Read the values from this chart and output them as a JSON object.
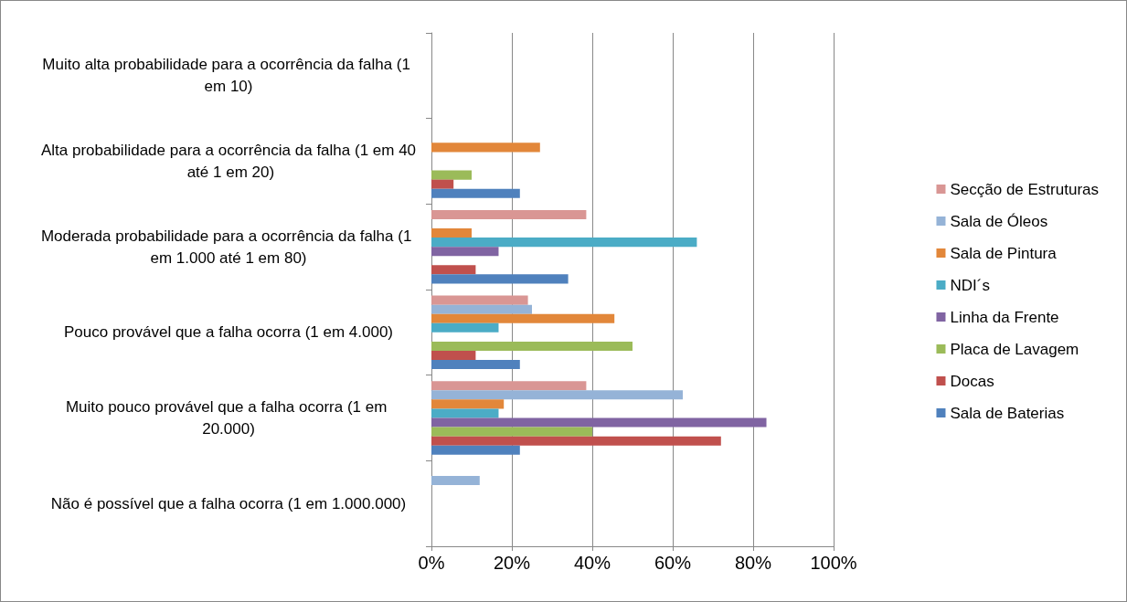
{
  "chart_data": {
    "type": "bar",
    "orientation": "horizontal",
    "categories": [
      "Muito alta probabilidade para a ocorrência da falha (1 em 10)",
      "Alta probabilidade para a ocorrência da falha (1 em 40 até 1 em 20)",
      "Moderada probabilidade para a ocorrência da falha (1 em 1.000 até 1 em 80)",
      "Pouco provável que a falha ocorra (1 em 4.000)",
      "Muito pouco provável que a falha ocorra (1 em 20.000)",
      "Não é possível que a falha ocorra (1 em 1.000.000)"
    ],
    "series": [
      {
        "name": "Secção de Estruturas",
        "color": "#d99694",
        "values": [
          null,
          null,
          38.5,
          24,
          38.5,
          null
        ]
      },
      {
        "name": "Sala de Óleos",
        "color": "#95b3d7",
        "values": [
          null,
          null,
          null,
          25,
          62.5,
          12
        ]
      },
      {
        "name": "Sala de Pintura",
        "color": "#e2873a",
        "values": [
          null,
          27,
          10,
          45.5,
          18,
          null
        ]
      },
      {
        "name": "NDI´s",
        "color": "#4bacc6",
        "values": [
          null,
          null,
          66,
          16.7,
          16.7,
          null
        ]
      },
      {
        "name": "Linha da Frente",
        "color": "#8064a2",
        "values": [
          null,
          null,
          16.7,
          null,
          83.3,
          null
        ]
      },
      {
        "name": "Placa de Lavagem",
        "color": "#9bbb59",
        "values": [
          null,
          10,
          null,
          50,
          40,
          null
        ]
      },
      {
        "name": "Docas",
        "color": "#c0504d",
        "values": [
          null,
          5.5,
          11,
          11,
          72,
          null
        ]
      },
      {
        "name": "Sala de Baterias",
        "color": "#4f81bd",
        "values": [
          null,
          22,
          34,
          22,
          22,
          null
        ]
      }
    ],
    "xlim": [
      0,
      100
    ],
    "xticks": [
      {
        "value": 0,
        "label": "0%"
      },
      {
        "value": 20,
        "label": "20%"
      },
      {
        "value": 40,
        "label": "40%"
      },
      {
        "value": 60,
        "label": "60%"
      },
      {
        "value": 80,
        "label": "80%"
      },
      {
        "value": 100,
        "label": "100%"
      }
    ],
    "grid": "x",
    "legend": "right"
  }
}
